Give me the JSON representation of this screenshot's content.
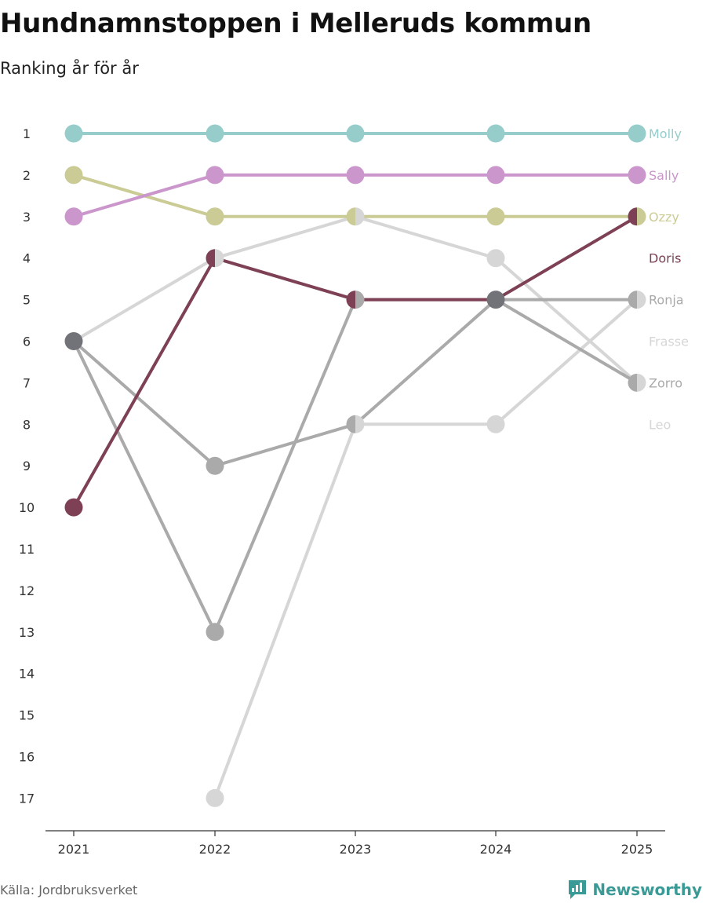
{
  "header": {
    "title": "Hundnamnstoppen i Melleruds kommun",
    "subtitle": "Ranking år för år"
  },
  "footer": {
    "source": "Källa: Jordbruksverket",
    "brand": "Newsworthy"
  },
  "colors": {
    "molly": "#96cdcb",
    "sally": "#cb96cb",
    "ozzy": "#cbcb96",
    "doris": "#7d4055",
    "ronja": "#aaaaaa",
    "frasse": "#d6d6d6",
    "zorro": "#aaaaaa",
    "leo": "#d6d6d6",
    "overlap": "#727279",
    "brand": "#3a9a95",
    "axis": "#333333"
  },
  "chart_data": {
    "type": "line",
    "title": "Hundnamnstoppen i Melleruds kommun",
    "subtitle": "Ranking år för år",
    "x": [
      "2021",
      "2022",
      "2023",
      "2024",
      "2025"
    ],
    "y_ticks": [
      "1",
      "2",
      "3",
      "4",
      "5",
      "6",
      "7",
      "8",
      "9",
      "10",
      "11",
      "12",
      "13",
      "14",
      "15",
      "16",
      "17"
    ],
    "ylim": [
      1,
      17
    ],
    "y_inverted": true,
    "xlabel": "",
    "ylabel": "",
    "series": [
      {
        "name": "Molly",
        "key": "molly",
        "values": [
          1,
          1,
          1,
          1,
          1
        ]
      },
      {
        "name": "Sally",
        "key": "sally",
        "values": [
          3,
          2,
          2,
          2,
          2
        ]
      },
      {
        "name": "Ozzy",
        "key": "ozzy",
        "values": [
          2,
          3,
          3,
          3,
          3
        ]
      },
      {
        "name": "Doris",
        "key": "doris",
        "values": [
          10,
          4,
          5,
          5,
          3
        ]
      },
      {
        "name": "Ronja",
        "key": "ronja",
        "values": [
          6,
          13,
          5,
          5,
          5
        ]
      },
      {
        "name": "Frasse",
        "key": "frasse",
        "values": [
          6,
          4,
          3,
          4,
          7
        ]
      },
      {
        "name": "Zorro",
        "key": "zorro",
        "values": [
          6,
          9,
          8,
          5,
          7
        ]
      },
      {
        "name": "Leo",
        "key": "leo",
        "values": [
          null,
          17,
          8,
          8,
          5
        ]
      }
    ],
    "label_order": [
      "Molly",
      "Sally",
      "Ozzy",
      "Doris",
      "Ronja",
      "Frasse",
      "Zorro",
      "Leo"
    ]
  }
}
